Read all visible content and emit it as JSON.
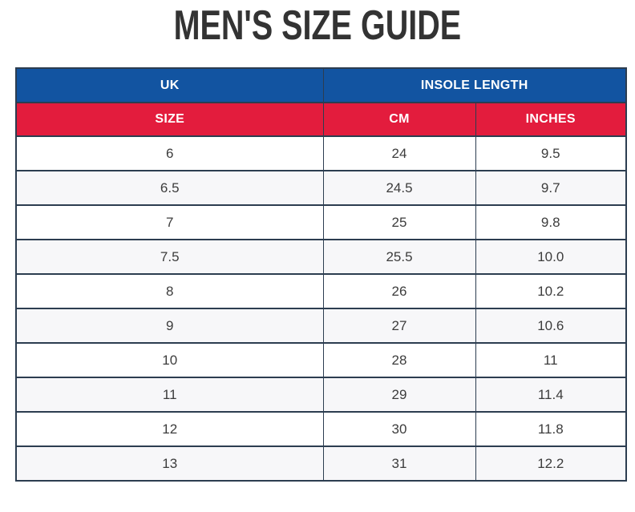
{
  "page_title": "MEN'S SIZE GUIDE",
  "chart_data": {
    "type": "table",
    "title": "MEN'S SIZE GUIDE",
    "header_groups": [
      {
        "label": "UK",
        "colspan": 1
      },
      {
        "label": "INSOLE LENGTH",
        "colspan": 2
      }
    ],
    "columns": [
      "SIZE",
      "CM",
      "INCHES"
    ],
    "rows": [
      [
        "6",
        "24",
        "9.5"
      ],
      [
        "6.5",
        "24.5",
        "9.7"
      ],
      [
        "7",
        "25",
        "9.8"
      ],
      [
        "7.5",
        "25.5",
        "10.0"
      ],
      [
        "8",
        "26",
        "10.2"
      ],
      [
        "9",
        "27",
        "10.6"
      ],
      [
        "10",
        "28",
        "11"
      ],
      [
        "11",
        "29",
        "11.4"
      ],
      [
        "12",
        "30",
        "11.8"
      ],
      [
        "13",
        "31",
        "12.2"
      ]
    ]
  },
  "colors": {
    "header_blue": "#1254A1",
    "header_red": "#E31C3D",
    "border": "#2C3D50",
    "alt_row": "#F7F7F9",
    "cell_text": "#3C3C3C",
    "title_text": "#333333"
  }
}
